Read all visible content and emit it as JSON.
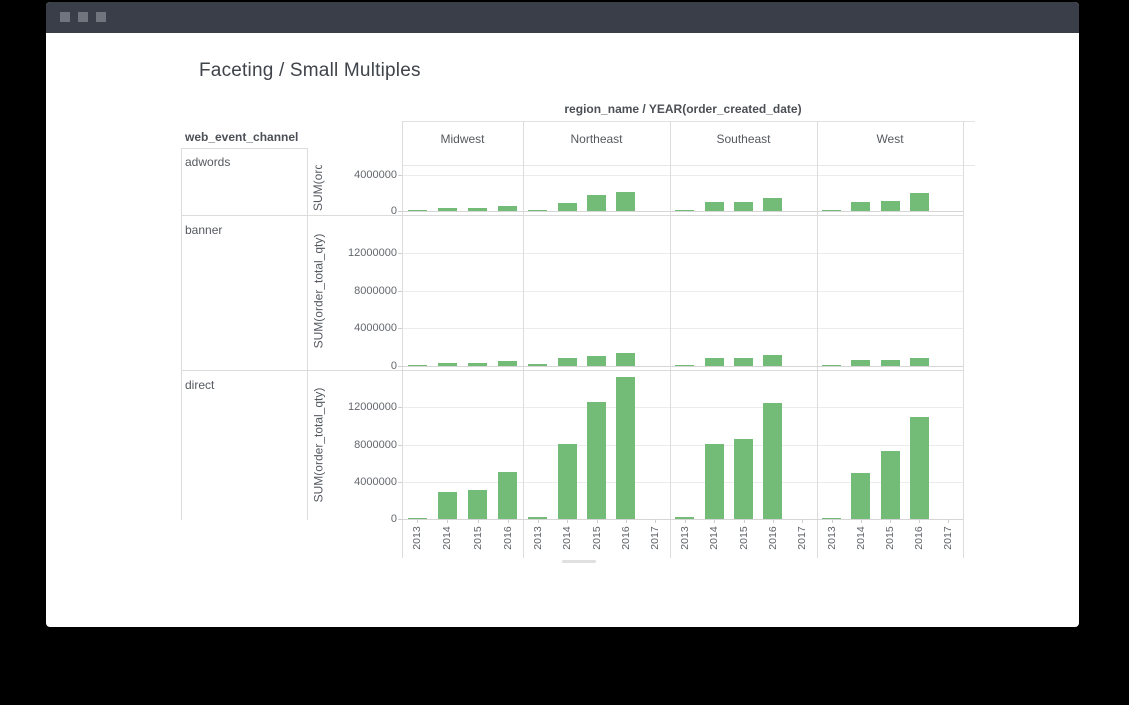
{
  "window": {
    "titlebar_color": "#3a3e48",
    "button_color": "#71757d",
    "buttons": [
      "menu-square-1",
      "menu-square-2",
      "menu-square-3"
    ]
  },
  "page": {
    "title": "Faceting / Small Multiples"
  },
  "chart_data": {
    "type": "bar",
    "facet_column_title": "region_name / YEAR(order_created_date)",
    "facet_row_title": "web_event_channel",
    "bar_color": "#72bc77",
    "grid": true,
    "legend": "none",
    "overflow_tick": "2013",
    "columns": [
      {
        "label": "Midwest",
        "years": [
          "2013",
          "2014",
          "2015",
          "2016"
        ]
      },
      {
        "label": "Northeast",
        "years": [
          "2013",
          "2014",
          "2015",
          "2016",
          "2017"
        ]
      },
      {
        "label": "Southeast",
        "years": [
          "2013",
          "2014",
          "2015",
          "2016",
          "2017"
        ]
      },
      {
        "label": "West",
        "years": [
          "2013",
          "2014",
          "2015",
          "2016",
          "2017"
        ]
      }
    ],
    "rows": [
      {
        "label": "adwords",
        "y_axis_title": "SUM(ord",
        "y_ticks": [
          0,
          4000000
        ],
        "y_max": 5100000,
        "values": {
          "Midwest": [
            60000,
            350000,
            350000,
            600000
          ],
          "Northeast": [
            150000,
            900000,
            1800000,
            2100000,
            0
          ],
          "Southeast": [
            100000,
            950000,
            1050000,
            1450000,
            0
          ],
          "West": [
            100000,
            1000000,
            1150000,
            2050000,
            0
          ]
        }
      },
      {
        "label": "banner",
        "y_axis_title": "SUM(order_total_qty)",
        "y_ticks": [
          0,
          4000000,
          8000000,
          12000000
        ],
        "y_max": 16000000,
        "values": {
          "Midwest": [
            100000,
            280000,
            280000,
            550000
          ],
          "Northeast": [
            200000,
            850000,
            1050000,
            1400000,
            0
          ],
          "Southeast": [
            120000,
            870000,
            870000,
            1200000,
            0
          ],
          "West": [
            100000,
            600000,
            640000,
            900000,
            0
          ]
        }
      },
      {
        "label": "direct",
        "y_axis_title": "SUM(order_total_qty)",
        "y_ticks": [
          0,
          4000000,
          8000000,
          12000000
        ],
        "y_max": 16000000,
        "values": {
          "Midwest": [
            150000,
            2850000,
            3150000,
            5100000
          ],
          "Northeast": [
            200000,
            8000000,
            12600000,
            15200000,
            0
          ],
          "Southeast": [
            250000,
            8100000,
            8550000,
            12450000,
            0
          ],
          "West": [
            100000,
            4950000,
            7250000,
            11000000,
            0
          ]
        }
      }
    ]
  }
}
